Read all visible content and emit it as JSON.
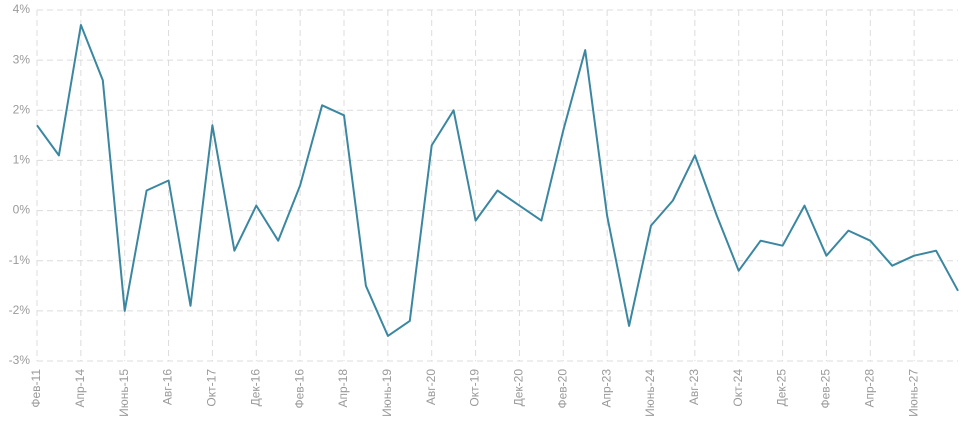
{
  "chart_data": {
    "type": "line",
    "categories": [
      "Фев-11",
      null,
      "Апр-14",
      null,
      "Июнь-15",
      null,
      "Авг-16",
      null,
      "Окт-17",
      null,
      "Дек-16",
      null,
      "Фев-16",
      null,
      "Апр-18",
      null,
      "Июнь-19",
      null,
      "Авг-20",
      null,
      "Окт-19",
      null,
      "Дек-20",
      null,
      "Фев-20",
      null,
      "Апр-23",
      null,
      "Июнь-24",
      null,
      "Авг-23",
      null,
      "Окт-24",
      null,
      "Дек-25",
      null,
      "Фев-25",
      null,
      "Апр-28",
      null,
      "Июнь-27",
      null,
      null
    ],
    "values": [
      1.7,
      1.1,
      3.7,
      2.6,
      -2.0,
      0.4,
      0.6,
      -1.9,
      1.7,
      -0.8,
      0.1,
      -0.6,
      0.5,
      2.1,
      1.9,
      -1.5,
      -2.5,
      -2.2,
      1.3,
      2.0,
      -0.2,
      0.4,
      0.1,
      -0.2,
      1.6,
      3.2,
      -0.1,
      -2.3,
      -0.3,
      0.2,
      1.1,
      -0.1,
      -1.2,
      -0.6,
      -0.7,
      0.1,
      -0.9,
      -0.4,
      -0.6,
      -1.1,
      -0.9,
      -0.8,
      -1.6
    ],
    "color": "#3b87a1",
    "ylim": [
      -3,
      4
    ],
    "yticks": [
      {
        "value": -3,
        "label": "-3%"
      },
      {
        "value": -2,
        "label": "-2%"
      },
      {
        "value": -1,
        "label": "-1%"
      },
      {
        "value": 0,
        "label": "0%"
      },
      {
        "value": 1,
        "label": "1%"
      },
      {
        "value": 2,
        "label": "2%"
      },
      {
        "value": 3,
        "label": "3%"
      },
      {
        "value": 4,
        "label": "4%"
      }
    ],
    "grid": true
  }
}
